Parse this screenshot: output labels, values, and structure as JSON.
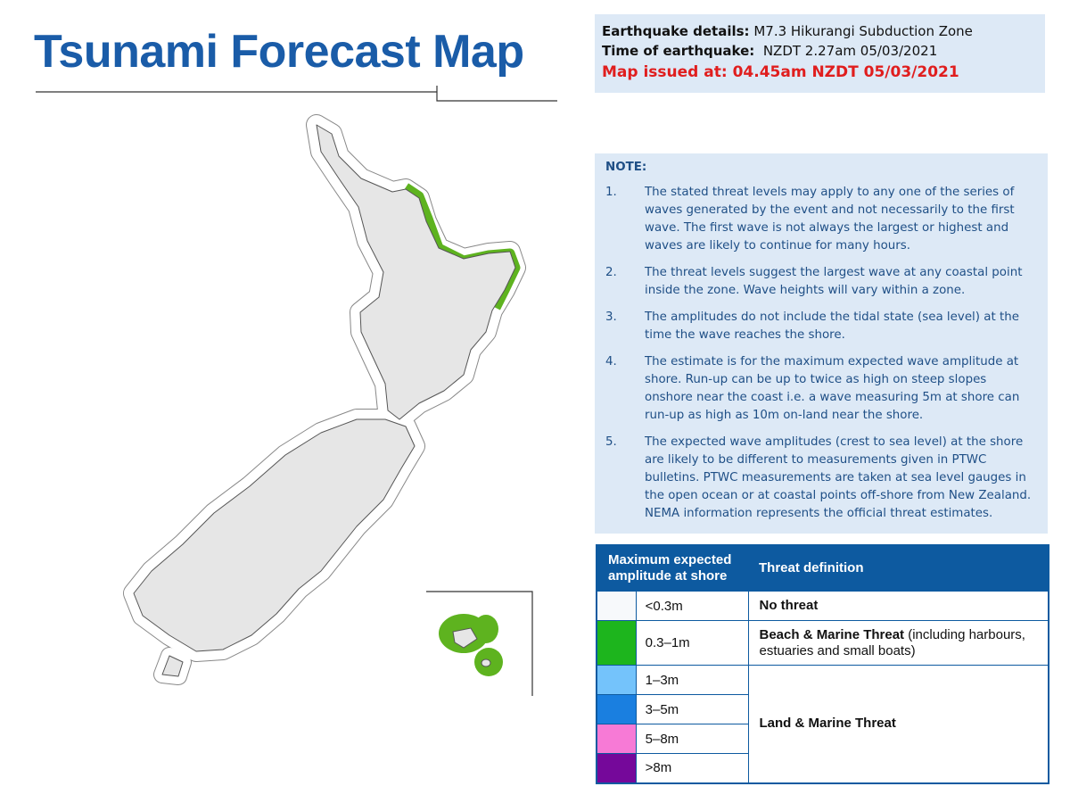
{
  "title": "Tsunami Forecast Map",
  "details": {
    "earthquake_label": "Earthquake details:",
    "earthquake": "M7.3 Hikurangi Subduction Zone",
    "time_label": "Time of earthquake:",
    "time": "NZDT 2.27am 05/03/2021",
    "issued": "Map issued at: 04.45am NZDT 05/03/2021"
  },
  "note": {
    "heading": "NOTE:",
    "items": [
      {
        "number": "1.",
        "text": "The stated threat levels may apply to any one of the series of waves generated by the event and not necessarily to the first wave. The first wave is not always the largest or highest and waves are likely to continue for many hours."
      },
      {
        "number": "2.",
        "text": "The threat levels suggest the largest wave at any coastal point inside the zone. Wave heights will vary within a zone."
      },
      {
        "number": "3.",
        "text": "The amplitudes do not include the tidal state (sea level) at the time the wave reaches the shore."
      },
      {
        "number": "4.",
        "text": "The estimate is for the maximum expected wave amplitude at shore. Run-up can be up to twice as high on steep slopes onshore near the coast i.e. a wave measuring 5m at shore can run-up as high as 10m on-land near the shore."
      },
      {
        "number": "5.",
        "text": "The expected wave amplitudes (crest to sea level) at the shore are likely to be different to measurements given in PTWC bulletins. PTWC measurements are taken at sea level gauges in the open ocean or at coastal points off-shore from New Zealand. NEMA information represents the official threat estimates."
      }
    ]
  },
  "legend": {
    "headers": [
      "Maximum expected amplitude at shore",
      "Threat definition"
    ],
    "groups": [
      {
        "threat": "No threat",
        "levels": [
          {
            "amplitude": "<0.3m",
            "color": "#f7f9fb"
          }
        ]
      },
      {
        "threat": "Beach & Marine Threat",
        "detail": "(including harbours, estuaries and small boats)",
        "levels": [
          {
            "amplitude": "0.3–1m",
            "color": "#1db51d"
          }
        ]
      },
      {
        "threat": "Land & Marine Threat",
        "levels": [
          {
            "amplitude": "1–3m",
            "color": "#74c3fb"
          },
          {
            "amplitude": "3–5m",
            "color": "#1a7fe0"
          },
          {
            "amplitude": "5–8m",
            "color": "#f77ad6"
          },
          {
            "amplitude": ">8m",
            "color": "#75089a"
          }
        ]
      }
    ]
  }
}
